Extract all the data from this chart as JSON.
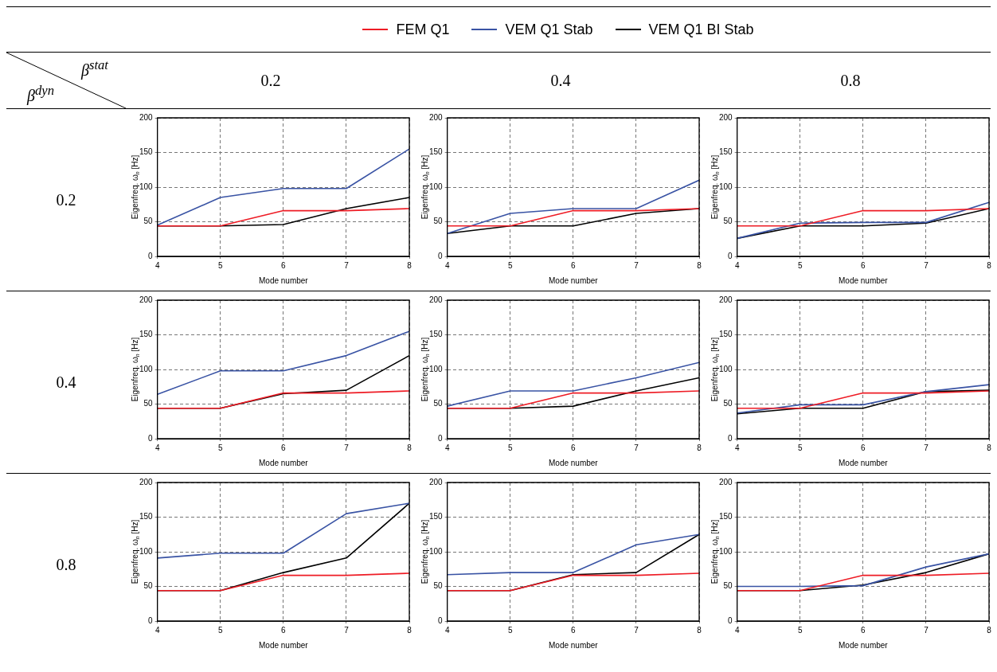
{
  "chart_data": [
    {
      "type": "line",
      "xlabel": "Mode number",
      "ylabel": "Eigenfreq. ω$_{n}$ [Hz]",
      "x": [
        4,
        5,
        6,
        7,
        8
      ],
      "xlim": [
        4,
        8
      ],
      "xticks": [
        4,
        5,
        6,
        7,
        8
      ],
      "ylim": [
        0,
        200
      ],
      "yticks": [
        0,
        50,
        100,
        150,
        200
      ],
      "grid": true,
      "marker": "none",
      "legend": "top",
      "series": [
        {
          "name": "FEM Q1",
          "color": "#ee1c25",
          "values": [
            44,
            44,
            66,
            66,
            69
          ]
        },
        {
          "name": "VEM Q1 Stab",
          "color": "#3953a4",
          "values": [
            45,
            85,
            98,
            98,
            155
          ]
        },
        {
          "name": "VEM Q1 BI Stab",
          "color": "#000000",
          "values": [
            44,
            44,
            46,
            69,
            85
          ]
        }
      ]
    },
    {
      "type": "line",
      "xlabel": "Mode number",
      "ylabel": "Eigenfreq. ω$_{n}$ [Hz]",
      "x": [
        4,
        5,
        6,
        7,
        8
      ],
      "xlim": [
        4,
        8
      ],
      "xticks": [
        4,
        5,
        6,
        7,
        8
      ],
      "ylim": [
        0,
        200
      ],
      "yticks": [
        0,
        50,
        100,
        150,
        200
      ],
      "grid": true,
      "marker": "none",
      "series": [
        {
          "color": "#ee1c25",
          "values": [
            44,
            44,
            66,
            66,
            69
          ]
        },
        {
          "color": "#3953a4",
          "values": [
            33,
            62,
            69,
            69,
            110
          ]
        },
        {
          "color": "#000000",
          "values": [
            33,
            44,
            44,
            62,
            69
          ]
        }
      ]
    },
    {
      "type": "line",
      "xlabel": "Mode number",
      "ylabel": "Eigenfreq. ω$_{n}$ [Hz]",
      "x": [
        4,
        5,
        6,
        7,
        8
      ],
      "xlim": [
        4,
        8
      ],
      "xticks": [
        4,
        5,
        6,
        7,
        8
      ],
      "ylim": [
        0,
        200
      ],
      "yticks": [
        0,
        50,
        100,
        150,
        200
      ],
      "grid": true,
      "marker": "none",
      "series": [
        {
          "color": "#ee1c25",
          "values": [
            44,
            44,
            66,
            66,
            69
          ]
        },
        {
          "color": "#3953a4",
          "values": [
            26,
            48,
            49,
            49,
            78
          ]
        },
        {
          "color": "#000000",
          "values": [
            26,
            44,
            44,
            48,
            69
          ]
        }
      ]
    },
    {
      "type": "line",
      "xlabel": "Mode number",
      "ylabel": "Eigenfreq. ω$_{n}$ [Hz]",
      "x": [
        4,
        5,
        6,
        7,
        8
      ],
      "xlim": [
        4,
        8
      ],
      "xticks": [
        4,
        5,
        6,
        7,
        8
      ],
      "ylim": [
        0,
        200
      ],
      "yticks": [
        0,
        50,
        100,
        150,
        200
      ],
      "grid": true,
      "marker": "none",
      "series": [
        {
          "color": "#ee1c25",
          "values": [
            44,
            44,
            66,
            66,
            69
          ]
        },
        {
          "color": "#3953a4",
          "values": [
            64,
            98,
            98,
            120,
            155
          ]
        },
        {
          "color": "#000000",
          "values": [
            44,
            44,
            65,
            70,
            120
          ]
        }
      ]
    },
    {
      "type": "line",
      "xlabel": "Mode number",
      "ylabel": "Eigenfreq. ω$_{n}$ [Hz]",
      "x": [
        4,
        5,
        6,
        7,
        8
      ],
      "xlim": [
        4,
        8
      ],
      "xticks": [
        4,
        5,
        6,
        7,
        8
      ],
      "ylim": [
        0,
        200
      ],
      "yticks": [
        0,
        50,
        100,
        150,
        200
      ],
      "grid": true,
      "marker": "none",
      "series": [
        {
          "color": "#ee1c25",
          "values": [
            44,
            44,
            66,
            66,
            69
          ]
        },
        {
          "color": "#3953a4",
          "values": [
            47,
            69,
            69,
            88,
            110
          ]
        },
        {
          "color": "#000000",
          "values": [
            44,
            44,
            47,
            69,
            88
          ]
        }
      ]
    },
    {
      "type": "line",
      "xlabel": "Mode number",
      "ylabel": "Eigenfreq. ω$_{n}$ [Hz]",
      "x": [
        4,
        5,
        6,
        7,
        8
      ],
      "xlim": [
        4,
        8
      ],
      "xticks": [
        4,
        5,
        6,
        7,
        8
      ],
      "ylim": [
        0,
        200
      ],
      "yticks": [
        0,
        50,
        100,
        150,
        200
      ],
      "grid": true,
      "marker": "none",
      "series": [
        {
          "color": "#ee1c25",
          "values": [
            44,
            44,
            66,
            66,
            69
          ]
        },
        {
          "color": "#3953a4",
          "values": [
            37,
            49,
            49,
            68,
            78
          ]
        },
        {
          "color": "#000000",
          "values": [
            36,
            44,
            44,
            68,
            70
          ]
        }
      ]
    },
    {
      "type": "line",
      "xlabel": "Mode number",
      "ylabel": "Eigenfreq. ω$_{n}$ [Hz]",
      "x": [
        4,
        5,
        6,
        7,
        8
      ],
      "xlim": [
        4,
        8
      ],
      "xticks": [
        4,
        5,
        6,
        7,
        8
      ],
      "ylim": [
        0,
        200
      ],
      "yticks": [
        0,
        50,
        100,
        150,
        200
      ],
      "grid": true,
      "marker": "none",
      "series": [
        {
          "color": "#ee1c25",
          "values": [
            44,
            44,
            66,
            66,
            69
          ]
        },
        {
          "color": "#3953a4",
          "values": [
            91,
            98,
            98,
            155,
            170
          ]
        },
        {
          "color": "#000000",
          "values": [
            44,
            44,
            70,
            91,
            170
          ]
        }
      ]
    },
    {
      "type": "line",
      "xlabel": "Mode number",
      "ylabel": "Eigenfreq. ω$_{n}$ [Hz]",
      "x": [
        4,
        5,
        6,
        7,
        8
      ],
      "xlim": [
        4,
        8
      ],
      "xticks": [
        4,
        5,
        6,
        7,
        8
      ],
      "ylim": [
        0,
        200
      ],
      "yticks": [
        0,
        50,
        100,
        150,
        200
      ],
      "grid": true,
      "marker": "none",
      "series": [
        {
          "color": "#ee1c25",
          "values": [
            44,
            44,
            66,
            66,
            69
          ]
        },
        {
          "color": "#3953a4",
          "values": [
            67,
            70,
            70,
            110,
            125
          ]
        },
        {
          "color": "#000000",
          "values": [
            44,
            44,
            67,
            70,
            125
          ]
        }
      ]
    },
    {
      "type": "line",
      "xlabel": "Mode number",
      "ylabel": "Eigenfreq. ω$_{n}$ [Hz]",
      "x": [
        4,
        5,
        6,
        7,
        8
      ],
      "xlim": [
        4,
        8
      ],
      "xticks": [
        4,
        5,
        6,
        7,
        8
      ],
      "ylim": [
        0,
        200
      ],
      "yticks": [
        0,
        50,
        100,
        150,
        200
      ],
      "grid": true,
      "marker": "none",
      "series": [
        {
          "color": "#ee1c25",
          "values": [
            44,
            44,
            66,
            66,
            69
          ]
        },
        {
          "color": "#3953a4",
          "values": [
            50,
            50,
            51,
            78,
            97
          ]
        },
        {
          "color": "#000000",
          "values": [
            44,
            44,
            52,
            70,
            97
          ]
        }
      ]
    },
    {
      "type": "other",
      "annotations": [
        "β$^{stat}$",
        "β$^{dyn}$",
        "0.2",
        "0.4",
        "0.8",
        "0.2",
        "0.4",
        "0.8"
      ]
    }
  ]
}
